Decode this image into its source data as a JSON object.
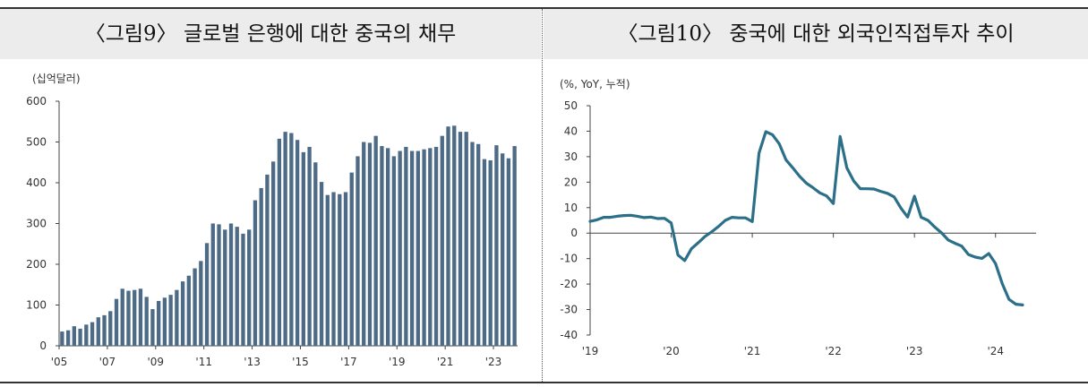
{
  "chart_data": [
    {
      "type": "bar",
      "title": "〈그림9〉 글로벌 은행에 대한 중국의 채무",
      "unit_label": "(십억달러)",
      "ylim": [
        0,
        600
      ],
      "yticks": [
        "0",
        "100",
        "200",
        "300",
        "400",
        "500",
        "600"
      ],
      "x_tick_labels": [
        "'05",
        "'07",
        "'09",
        "'11",
        "'13",
        "'15",
        "'17",
        "'19",
        "'21",
        "'23"
      ],
      "x_tick_years": [
        2005,
        2007,
        2009,
        2011,
        2013,
        2015,
        2017,
        2019,
        2021,
        2023
      ],
      "x_start_year": 2005,
      "x_end_year": 2024,
      "grid": false,
      "color": "#4d6b87",
      "values": [
        35,
        38,
        48,
        42,
        52,
        58,
        70,
        75,
        85,
        115,
        140,
        135,
        137,
        140,
        120,
        90,
        110,
        118,
        125,
        137,
        158,
        172,
        190,
        208,
        252,
        300,
        298,
        285,
        300,
        292,
        275,
        285,
        357,
        387,
        420,
        452,
        508,
        525,
        522,
        505,
        475,
        488,
        450,
        402,
        370,
        377,
        372,
        377,
        425,
        465,
        500,
        498,
        515,
        490,
        485,
        465,
        478,
        488,
        478,
        478,
        482,
        485,
        488,
        515,
        538,
        540,
        525,
        525,
        500,
        495,
        458,
        455,
        492,
        472,
        460,
        490
      ]
    },
    {
      "type": "line",
      "title": "〈그림10〉 중국에 대한 외국인직접투자 추이",
      "unit_label": "(%, YoY, 누적)",
      "ylim": [
        -40,
        50
      ],
      "yticks": [
        "50",
        "40",
        "30",
        "20",
        "10",
        "0",
        "-10",
        "-20",
        "-30",
        "-40"
      ],
      "x_tick_labels": [
        "'19",
        "'20",
        "'21",
        "'22",
        "'23",
        "'24"
      ],
      "x_tick_months": [
        0,
        12,
        24,
        36,
        48,
        60
      ],
      "x_month_range": [
        0,
        66
      ],
      "grid": false,
      "color": "#2b6f88",
      "series": [
        {
          "points": [
            [
              0,
              4.6
            ],
            [
              1,
              5.2
            ],
            [
              2,
              6.2
            ],
            [
              3,
              6.2
            ],
            [
              4,
              6.6
            ],
            [
              5,
              6.9
            ],
            [
              6,
              7.0
            ],
            [
              7,
              6.6
            ],
            [
              8,
              6.1
            ],
            [
              9,
              6.3
            ],
            [
              10,
              5.7
            ],
            [
              11,
              5.8
            ],
            [
              12,
              4.0
            ],
            [
              13,
              -8.6
            ],
            [
              14,
              -10.8
            ],
            [
              15,
              -6.1
            ],
            [
              16,
              -3.8
            ],
            [
              17,
              -1.3
            ],
            [
              18,
              0.5
            ],
            [
              19,
              2.6
            ],
            [
              20,
              5.0
            ],
            [
              21,
              6.2
            ],
            [
              22,
              6.0
            ],
            [
              23,
              6.0
            ],
            [
              24,
              4.5
            ],
            [
              25,
              31.4
            ],
            [
              26,
              39.8
            ],
            [
              27,
              38.6
            ],
            [
              28,
              35.0
            ],
            [
              29,
              28.7
            ],
            [
              30,
              25.6
            ],
            [
              31,
              22.3
            ],
            [
              32,
              19.6
            ],
            [
              33,
              17.8
            ],
            [
              34,
              15.8
            ],
            [
              35,
              14.6
            ],
            [
              36,
              11.6
            ],
            [
              37,
              37.9
            ],
            [
              38,
              25.6
            ],
            [
              39,
              20.5
            ],
            [
              40,
              17.4
            ],
            [
              41,
              17.4
            ],
            [
              42,
              17.3
            ],
            [
              43,
              16.4
            ],
            [
              44,
              15.6
            ],
            [
              45,
              14.2
            ],
            [
              46,
              9.8
            ],
            [
              47,
              6.3
            ],
            [
              48,
              14.5
            ],
            [
              49,
              6.2
            ],
            [
              50,
              5.0
            ],
            [
              51,
              2.4
            ],
            [
              52,
              0.1
            ],
            [
              53,
              -2.7
            ],
            [
              54,
              -4.0
            ],
            [
              55,
              -5.1
            ],
            [
              56,
              -8.4
            ],
            [
              57,
              -9.4
            ],
            [
              58,
              -9.9
            ],
            [
              59,
              -8.0
            ],
            [
              60,
              -11.9
            ],
            [
              61,
              -19.9
            ],
            [
              62,
              -26.0
            ],
            [
              63,
              -27.9
            ],
            [
              64,
              -28.2
            ]
          ]
        }
      ]
    }
  ]
}
